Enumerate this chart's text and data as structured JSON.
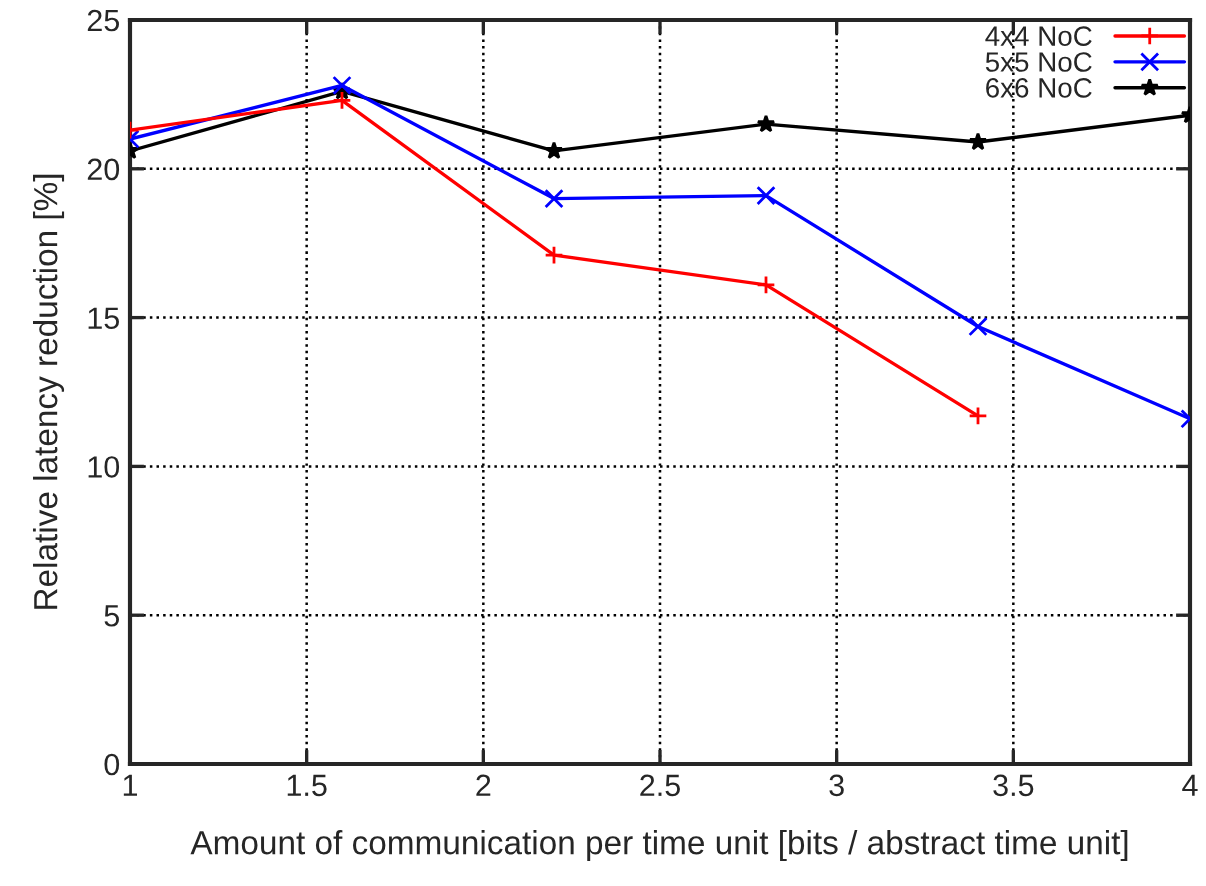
{
  "chart_data": {
    "type": "line",
    "xlabel": "Amount of communication per time unit [bits / abstract time unit]",
    "ylabel": "Relative latency reduction [%]",
    "x": [
      1,
      1.6,
      2.2,
      2.8,
      3.4,
      4
    ],
    "series": [
      {
        "name": "4x4 NoC",
        "color": "#ff0000",
        "marker": "plus",
        "values": [
          21.3,
          22.3,
          17.1,
          16.1,
          11.7,
          null
        ]
      },
      {
        "name": "5x5 NoC",
        "color": "#0000ff",
        "marker": "cross",
        "values": [
          21.0,
          22.8,
          19.0,
          19.1,
          14.7,
          11.6
        ]
      },
      {
        "name": "6x6 NoC",
        "color": "#000000",
        "marker": "star",
        "values": [
          20.6,
          22.6,
          20.6,
          21.5,
          20.9,
          21.8
        ]
      }
    ],
    "xlim": [
      1,
      4
    ],
    "xticks": [
      1,
      1.5,
      2,
      2.5,
      3,
      3.5,
      4
    ],
    "ylim": [
      0,
      25
    ],
    "yticks": [
      0,
      5,
      10,
      15,
      20,
      25
    ],
    "grid": true,
    "legend": "top right",
    "line_style": "solid"
  }
}
